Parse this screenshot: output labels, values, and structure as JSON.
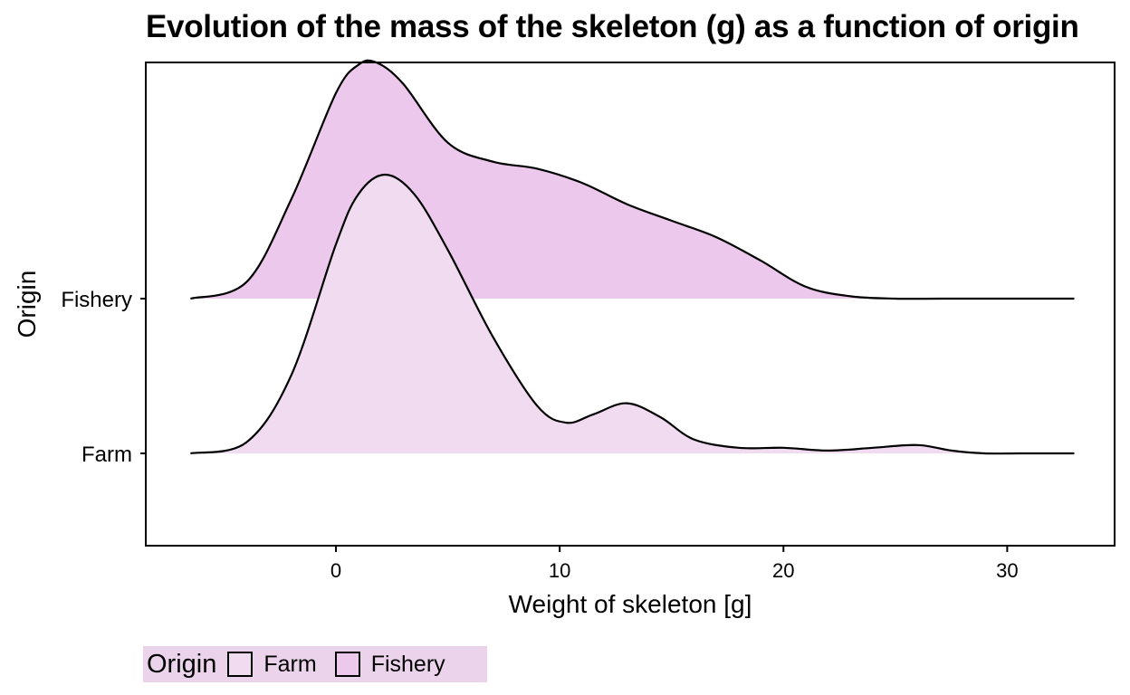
{
  "chart_data": {
    "type": "area",
    "title": "Evolution of the mass of the skeleton (g) as a function of origin",
    "xlabel": "Weight of skeleton  [g]",
    "ylabel": "Origin",
    "xlim": [
      -8.5,
      34.8
    ],
    "xticks": [
      0,
      10,
      20,
      30
    ],
    "categories": [
      "Farm",
      "Fishery"
    ],
    "legend": {
      "title": "Origin",
      "position": "bottom-left"
    },
    "series": [
      {
        "name": "Farm",
        "color": "#f0dbf0",
        "x": [
          -6.5,
          -4.0,
          -2.0,
          0.0,
          1.0,
          2.2,
          3.5,
          5.0,
          7.0,
          9.0,
          10.3,
          11.5,
          13.0,
          14.5,
          16.0,
          18.0,
          20.0,
          22.0,
          24.0,
          26.0,
          27.5,
          29.0,
          30.5,
          32.0,
          33.0
        ],
        "density": [
          0.0,
          0.04,
          0.28,
          0.75,
          0.93,
          1.0,
          0.93,
          0.73,
          0.42,
          0.17,
          0.11,
          0.14,
          0.18,
          0.13,
          0.05,
          0.02,
          0.02,
          0.01,
          0.02,
          0.03,
          0.01,
          0.0,
          0.0,
          0.0,
          0.0
        ],
        "baseline_y": "Farm"
      },
      {
        "name": "Fishery",
        "color": "#ecc8ec",
        "x": [
          -6.5,
          -4.0,
          -2.0,
          0.0,
          1.0,
          1.8,
          3.0,
          5.0,
          7.0,
          9.0,
          11.0,
          13.0,
          15.0,
          17.0,
          19.0,
          21.0,
          23.0,
          25.0,
          27.0,
          29.0,
          31.0,
          33.0
        ],
        "density": [
          0.0,
          0.07,
          0.42,
          0.87,
          0.99,
          1.0,
          0.91,
          0.66,
          0.58,
          0.55,
          0.49,
          0.4,
          0.33,
          0.26,
          0.16,
          0.05,
          0.01,
          0.0,
          0.0,
          0.0,
          0.0,
          0.0
        ],
        "baseline_y": "Fishery"
      }
    ],
    "grid": false
  }
}
